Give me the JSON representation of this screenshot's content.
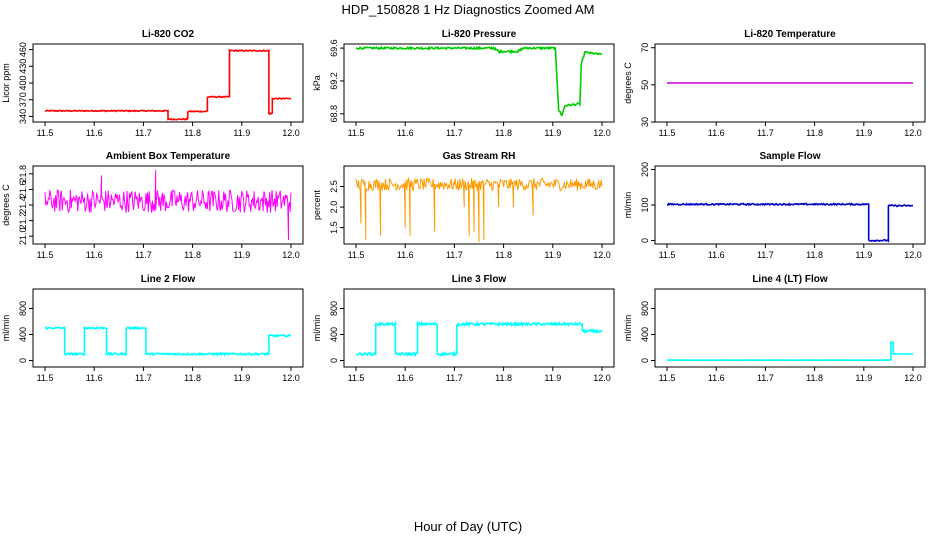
{
  "figure": {
    "title": "HDP_150828  1 Hz Diagnostics Zoomed AM",
    "xlabel": "Hour of Day (UTC)"
  },
  "chart_data": [
    {
      "type": "line",
      "title": "Li-820 CO2",
      "ylabel": "Licor ppm",
      "color": "#ff0000",
      "xlim": [
        11.5,
        12.0
      ],
      "ylim": [
        330,
        470
      ],
      "xticks": [
        "11.5",
        "11.6",
        "11.7",
        "11.8",
        "11.9",
        "12.0"
      ],
      "yticks": [
        "340",
        "370",
        "400",
        "430",
        "460"
      ],
      "series": [
        {
          "name": "CO2",
          "step": true,
          "x": [
            11.5,
            11.75,
            11.75,
            11.79,
            11.79,
            11.83,
            11.83,
            11.875,
            11.875,
            11.955,
            11.955,
            11.962,
            11.962,
            12.0
          ],
          "values": [
            350,
            350,
            335,
            335,
            349,
            349,
            375,
            375,
            458,
            458,
            345,
            345,
            372,
            372
          ],
          "noise": 1
        }
      ]
    },
    {
      "type": "line",
      "title": "Li-820 Pressure",
      "ylabel": "kPa",
      "color": "#00cc00",
      "xlim": [
        11.5,
        12.0
      ],
      "ylim": [
        68.7,
        69.65
      ],
      "xticks": [
        "11.5",
        "11.6",
        "11.7",
        "11.8",
        "11.9",
        "12.0"
      ],
      "yticks": [
        "68.8",
        "69.2",
        "69.6"
      ],
      "series": [
        {
          "name": "Pressure",
          "x": [
            11.5,
            11.78,
            11.79,
            11.83,
            11.84,
            11.905,
            11.912,
            11.918,
            11.925,
            11.955,
            11.958,
            11.965,
            12.0
          ],
          "values": [
            69.6,
            69.6,
            69.56,
            69.56,
            69.6,
            69.6,
            68.85,
            68.78,
            68.9,
            68.92,
            69.4,
            69.55,
            69.52
          ],
          "noise": 0.012
        }
      ]
    },
    {
      "type": "line",
      "title": "Li-820 Temperature",
      "ylabel": "degrees C",
      "color": "#cc00cc",
      "xlim": [
        11.5,
        12.0
      ],
      "ylim": [
        30,
        72
      ],
      "xticks": [
        "11.5",
        "11.6",
        "11.7",
        "11.8",
        "11.9",
        "12.0"
      ],
      "yticks": [
        "30",
        "50",
        "70"
      ],
      "series": [
        {
          "name": "Temperature",
          "x": [
            11.5,
            12.0
          ],
          "values": [
            51,
            51
          ],
          "noise": 0
        }
      ]
    },
    {
      "type": "line",
      "title": "Ambient Box Temperature",
      "ylabel": "degrees C",
      "color": "#ff00ff",
      "xlim": [
        11.5,
        12.0
      ],
      "ylim": [
        20.9,
        21.9
      ],
      "xticks": [
        "11.5",
        "11.6",
        "11.7",
        "11.8",
        "11.9",
        "12.0"
      ],
      "yticks": [
        "21.0",
        "21.2",
        "21.4",
        "21.6",
        "21.8"
      ],
      "series": [
        {
          "name": "Box Temp",
          "x": [
            11.5,
            12.0
          ],
          "values": [
            21.45,
            21.45
          ],
          "noise": 0.15,
          "spikes": [
            [
              11.995,
              20.95
            ],
            [
              11.725,
              21.85
            ],
            [
              11.615,
              21.78
            ]
          ]
        }
      ]
    },
    {
      "type": "line",
      "title": "Gas Stream RH",
      "ylabel": "percent",
      "color": "#ff9900",
      "xlim": [
        11.5,
        12.0
      ],
      "ylim": [
        1.1,
        3.0
      ],
      "xticks": [
        "11.5",
        "11.6",
        "11.7",
        "11.8",
        "11.9",
        "12.0"
      ],
      "yticks": [
        "1.5",
        "2.0",
        "2.5"
      ],
      "series": [
        {
          "name": "RH",
          "x": [
            11.5,
            12.0
          ],
          "values": [
            2.55,
            2.55
          ],
          "noise": 0.15,
          "spikes": [
            [
              11.51,
              1.6
            ],
            [
              11.52,
              1.2
            ],
            [
              11.55,
              1.3
            ],
            [
              11.6,
              1.5
            ],
            [
              11.61,
              1.3
            ],
            [
              11.66,
              1.4
            ],
            [
              11.72,
              2.0
            ],
            [
              11.73,
              1.3
            ],
            [
              11.74,
              1.4
            ],
            [
              11.75,
              1.15
            ],
            [
              11.76,
              1.2
            ],
            [
              11.79,
              2.0
            ],
            [
              11.82,
              2.0
            ],
            [
              11.86,
              1.8
            ]
          ]
        }
      ]
    },
    {
      "type": "line",
      "title": "Sample Flow",
      "ylabel": "ml/min",
      "color": "#0000cc",
      "xlim": [
        11.5,
        12.0
      ],
      "ylim": [
        -10,
        210
      ],
      "xticks": [
        "11.5",
        "11.6",
        "11.7",
        "11.8",
        "11.9",
        "12.0"
      ],
      "yticks": [
        "0",
        "100",
        "200"
      ],
      "series": [
        {
          "name": "Sample",
          "step": true,
          "x": [
            11.5,
            11.91,
            11.91,
            11.95,
            11.95,
            12.0
          ],
          "values": [
            102,
            102,
            0,
            0,
            98,
            98
          ],
          "noise": 2
        }
      ]
    },
    {
      "type": "line",
      "title": "Line 2 Flow",
      "ylabel": "ml/min",
      "color": "#00ffff",
      "xlim": [
        11.5,
        12.0
      ],
      "ylim": [
        -100,
        1100
      ],
      "xticks": [
        "11.5",
        "11.6",
        "11.7",
        "11.8",
        "11.9",
        "12.0"
      ],
      "yticks": [
        "0",
        "400",
        "800"
      ],
      "series": [
        {
          "name": "Line 2",
          "step": true,
          "x": [
            11.5,
            11.54,
            11.54,
            11.58,
            11.58,
            11.625,
            11.625,
            11.665,
            11.665,
            11.705,
            11.705,
            11.955,
            11.955,
            12.0
          ],
          "values": [
            500,
            500,
            100,
            100,
            500,
            500,
            100,
            100,
            500,
            500,
            100,
            100,
            380,
            380
          ],
          "noise": 15
        }
      ]
    },
    {
      "type": "line",
      "title": "Line 3 Flow",
      "ylabel": "ml/min",
      "color": "#00ffff",
      "xlim": [
        11.5,
        12.0
      ],
      "ylim": [
        -100,
        1100
      ],
      "xticks": [
        "11.5",
        "11.6",
        "11.7",
        "11.8",
        "11.9",
        "12.0"
      ],
      "yticks": [
        "0",
        "400",
        "800"
      ],
      "series": [
        {
          "name": "Line 3",
          "step": true,
          "x": [
            11.5,
            11.54,
            11.54,
            11.58,
            11.58,
            11.625,
            11.625,
            11.665,
            11.665,
            11.705,
            11.705,
            11.96,
            11.96,
            12.0
          ],
          "values": [
            100,
            100,
            560,
            560,
            100,
            100,
            560,
            560,
            100,
            100,
            560,
            560,
            450,
            450
          ],
          "noise": 20
        }
      ]
    },
    {
      "type": "line",
      "title": "Line 4 (LT) Flow",
      "ylabel": "ml/min",
      "color": "#00ffff",
      "xlim": [
        11.5,
        12.0
      ],
      "ylim": [
        -100,
        1100
      ],
      "xticks": [
        "11.5",
        "11.6",
        "11.7",
        "11.8",
        "11.9",
        "12.0"
      ],
      "yticks": [
        "0",
        "400",
        "800"
      ],
      "series": [
        {
          "name": "Line 4",
          "step": true,
          "x": [
            11.5,
            11.955,
            11.955,
            11.96,
            11.96,
            12.0
          ],
          "values": [
            5,
            5,
            280,
            280,
            100,
            100
          ],
          "noise": 2
        }
      ]
    }
  ]
}
